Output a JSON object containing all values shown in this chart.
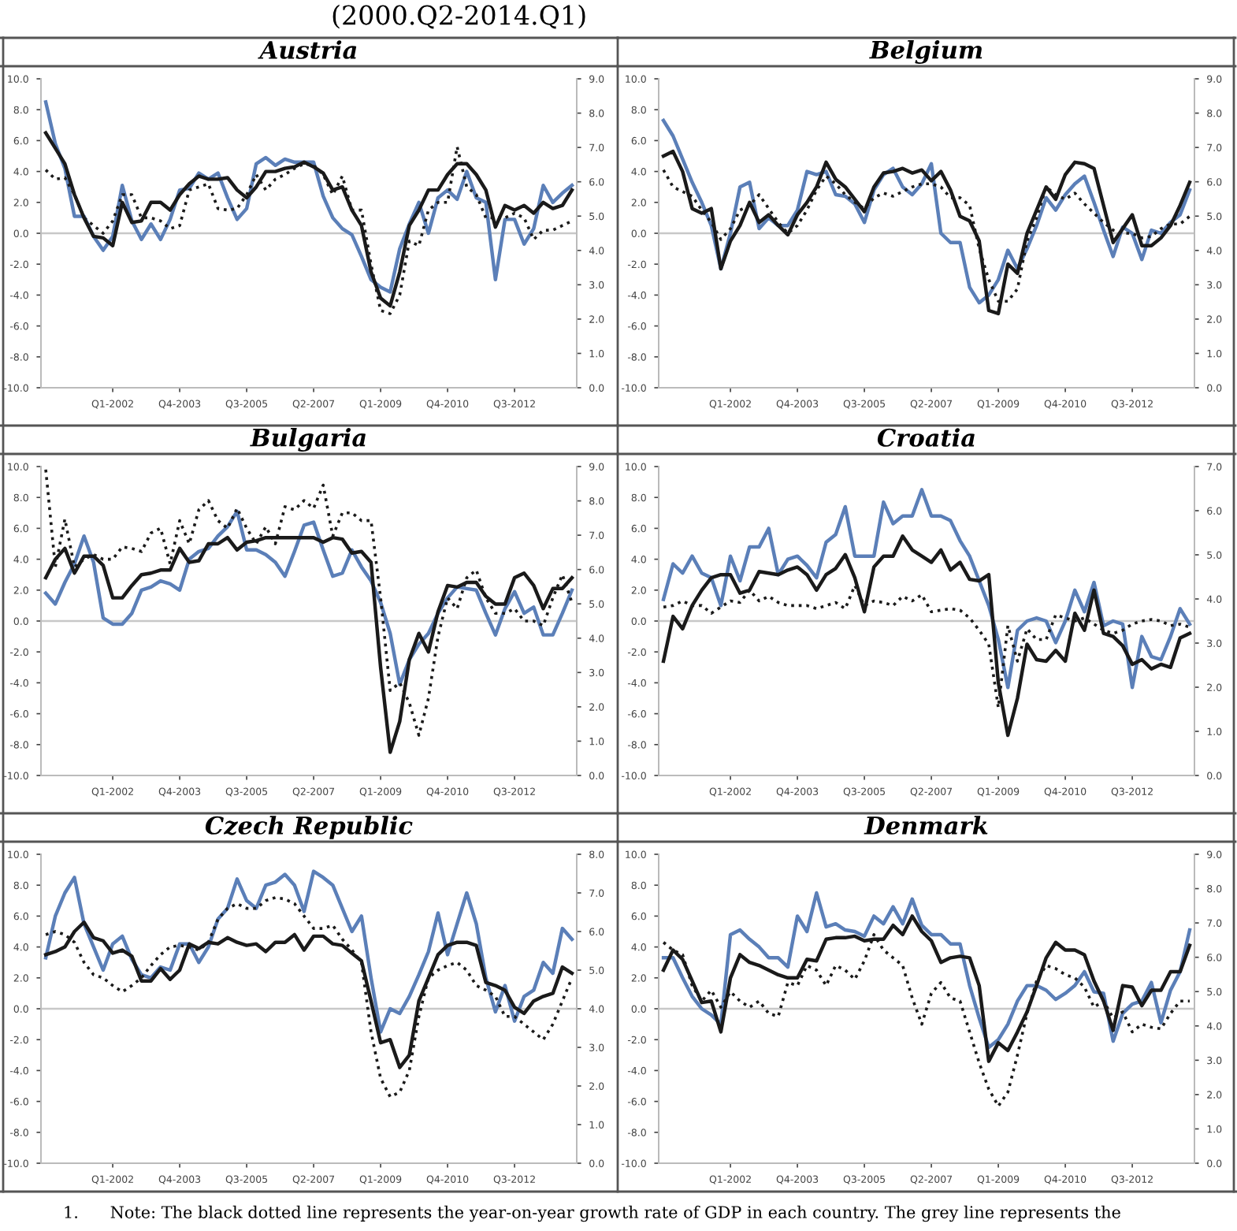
{
  "chart_data": [
    {
      "type": "line",
      "title": "Austria",
      "annotations": [
        "(2000.Q2-2014.Q1)"
      ],
      "categories": [
        null,
        null,
        null,
        null,
        null,
        null,
        null,
        "Q1-2002",
        null,
        null,
        null,
        null,
        null,
        null,
        "Q4-2003",
        null,
        null,
        null,
        null,
        null,
        null,
        "Q3-2005",
        null,
        null,
        null,
        null,
        null,
        null,
        "Q2-2007",
        null,
        null,
        null,
        null,
        null,
        null,
        "Q1-2009",
        null,
        null,
        null,
        null,
        null,
        null,
        "Q4-2010",
        null,
        null,
        null,
        null,
        null,
        null,
        "Q3-2012",
        null,
        null,
        null,
        null,
        null,
        null
      ],
      "series": [
        {
          "color": "#5b7fb8",
          "line_style": "solid",
          "values": [
            8.5,
            5.8,
            4.2,
            1.1,
            1.1,
            -0.2,
            -1.1,
            -0.2,
            3.1,
            0.8,
            -0.4,
            0.6,
            -0.4,
            0.9,
            2.8,
            2.9,
            3.9,
            3.5,
            3.9,
            2.3,
            0.9,
            1.6,
            4.5,
            4.9,
            4.4,
            4.8,
            4.6,
            4.6,
            4.6,
            2.4,
            1.0,
            0.3,
            -0.1,
            -1.5,
            -3.0,
            -3.5,
            -3.8,
            -1.0,
            0.6,
            2.0,
            0.0,
            2.3,
            2.8,
            2.2,
            4.0,
            2.3,
            2.0,
            -3.0,
            0.9,
            0.9,
            -0.7,
            0.3,
            3.1,
            2.0,
            2.6,
            3.1
          ]
        },
        {
          "color": "#1a1a1a",
          "line_style": "solid",
          "values": [
            6.5,
            5.5,
            4.5,
            2.5,
            1.0,
            -0.2,
            -0.3,
            -0.8,
            2.0,
            0.7,
            0.8,
            2.0,
            2.0,
            1.5,
            2.5,
            3.2,
            3.7,
            3.5,
            3.5,
            3.6,
            2.8,
            2.3,
            3.0,
            4.0,
            4.0,
            4.2,
            4.3,
            4.6,
            4.3,
            3.9,
            2.8,
            3.0,
            1.5,
            0.5,
            -2.5,
            -4.2,
            -4.7,
            -2.5,
            0.5,
            1.5,
            2.8,
            2.8,
            3.8,
            4.5,
            4.5,
            3.8,
            2.8,
            0.4,
            1.8,
            1.5,
            1.8,
            1.3,
            2.0,
            1.6,
            1.8,
            2.8
          ]
        },
        {
          "color": "#1a1a1a",
          "line_style": "dotted",
          "values": [
            4.1,
            3.5,
            3.6,
            2.5,
            1.0,
            0.5,
            0.0,
            0.8,
            2.5,
            2.5,
            1.0,
            1.0,
            0.8,
            0.3,
            0.5,
            2.8,
            3.0,
            3.2,
            1.6,
            1.5,
            1.6,
            2.5,
            3.8,
            2.8,
            3.5,
            3.8,
            4.2,
            4.5,
            4.4,
            3.8,
            2.5,
            3.7,
            1.5,
            1.5,
            -2.0,
            -5.0,
            -5.2,
            -4.0,
            -0.5,
            -0.8,
            1.5,
            2.0,
            2.0,
            5.6,
            3.0,
            2.5,
            1.0,
            1.0,
            1.0,
            1.3,
            1.0,
            -0.4,
            0.2,
            0.2,
            0.5,
            0.8
          ]
        }
      ],
      "ylim": [
        -10,
        10
      ],
      "yticks": [
        {
          "value": -10,
          "label": "-10.0"
        },
        {
          "value": -8,
          "label": "-8.0"
        },
        {
          "value": -6,
          "label": "-6.0"
        },
        {
          "value": -4,
          "label": "-4.0"
        },
        {
          "value": -2,
          "label": "-2.0"
        },
        {
          "value": 0,
          "label": "0.0"
        },
        {
          "value": 2,
          "label": "2.0"
        },
        {
          "value": 4,
          "label": "4.0"
        },
        {
          "value": 6,
          "label": "6.0"
        },
        {
          "value": 8,
          "label": "8.0"
        },
        {
          "value": 10,
          "label": "10.0"
        }
      ],
      "y2lim": [
        0,
        9
      ],
      "y2ticks": [
        {
          "value": 0,
          "label": "0.0"
        },
        {
          "value": 1,
          "label": "1.0"
        },
        {
          "value": 2,
          "label": "2.0"
        },
        {
          "value": 3,
          "label": "3.0"
        },
        {
          "value": 4,
          "label": "4.0"
        },
        {
          "value": 5,
          "label": "5.0"
        },
        {
          "value": 6,
          "label": "6.0"
        },
        {
          "value": 7,
          "label": "7.0"
        },
        {
          "value": 8,
          "label": "8.0"
        },
        {
          "value": 9,
          "label": "9.0"
        }
      ],
      "ref_lines": [
        {
          "axis": "y",
          "value": 0,
          "color": "#c8c8c8"
        }
      ]
    },
    {
      "type": "line",
      "title": "Belgium",
      "categories": [
        null,
        null,
        null,
        null,
        null,
        null,
        null,
        "Q1-2002",
        null,
        null,
        null,
        null,
        null,
        null,
        "Q4-2003",
        null,
        null,
        null,
        null,
        null,
        null,
        "Q3-2005",
        null,
        null,
        null,
        null,
        null,
        null,
        "Q2-2007",
        null,
        null,
        null,
        null,
        null,
        null,
        "Q1-2009",
        null,
        null,
        null,
        null,
        null,
        null,
        "Q4-2010",
        null,
        null,
        null,
        null,
        null,
        null,
        "Q3-2012",
        null,
        null,
        null,
        null,
        null,
        null
      ],
      "series": [
        {
          "color": "#5b7fb8",
          "line_style": "solid",
          "values": [
            7.3,
            6.3,
            4.8,
            3.3,
            2.0,
            0.5,
            -2.3,
            0.0,
            3.0,
            3.3,
            0.3,
            1.0,
            0.5,
            0.5,
            1.5,
            4.0,
            3.8,
            4.0,
            2.5,
            2.4,
            1.9,
            0.7,
            2.8,
            3.8,
            4.2,
            3.0,
            2.5,
            3.2,
            4.5,
            0.0,
            -0.6,
            -0.6,
            -3.5,
            -4.5,
            -4.0,
            -3.0,
            -1.1,
            -2.3,
            -1.0,
            0.5,
            2.3,
            1.5,
            2.5,
            3.2,
            3.7,
            2.0,
            0.2,
            -1.5,
            0.4,
            0.0,
            -1.7,
            0.2,
            0.0,
            0.7,
            1.2,
            2.8
          ]
        },
        {
          "color": "#1a1a1a",
          "line_style": "solid",
          "values": [
            5.0,
            5.3,
            4.0,
            1.6,
            1.3,
            1.6,
            -2.3,
            -0.5,
            0.5,
            2.0,
            0.7,
            1.2,
            0.5,
            -0.1,
            1.2,
            2.0,
            3.0,
            4.6,
            3.5,
            3.0,
            2.2,
            1.4,
            3.0,
            3.9,
            4.0,
            4.2,
            3.9,
            4.1,
            3.4,
            4.0,
            2.8,
            1.1,
            0.8,
            -0.5,
            -5.0,
            -5.2,
            -2.0,
            -2.6,
            0.0,
            1.5,
            3.0,
            2.2,
            3.8,
            4.6,
            4.5,
            4.2,
            1.8,
            -0.6,
            0.3,
            1.2,
            -0.8,
            -0.8,
            -0.3,
            0.5,
            1.8,
            3.3
          ]
        },
        {
          "color": "#1a1a1a",
          "line_style": "dotted",
          "values": [
            4.1,
            3.0,
            2.7,
            2.4,
            1.5,
            0.7,
            -0.4,
            0.3,
            1.5,
            1.8,
            2.5,
            1.6,
            0.7,
            0.0,
            0.5,
            1.5,
            2.8,
            3.7,
            3.2,
            2.5,
            2.0,
            1.6,
            2.3,
            2.6,
            2.4,
            2.7,
            3.0,
            3.2,
            3.2,
            3.0,
            2.3,
            2.3,
            1.8,
            -1.0,
            -3.0,
            -4.4,
            -4.4,
            -3.6,
            -0.5,
            1.0,
            3.0,
            2.5,
            2.2,
            2.6,
            1.9,
            1.3,
            0.7,
            0.2,
            0.0,
            0.0,
            -0.3,
            -0.2,
            0.3,
            0.6,
            0.6,
            1.1
          ]
        }
      ],
      "ylim": [
        -10,
        10
      ],
      "yticks": [
        {
          "value": -10,
          "label": "-10.0"
        },
        {
          "value": -8,
          "label": "-8.0"
        },
        {
          "value": -6,
          "label": "-6.0"
        },
        {
          "value": -4,
          "label": "-4.0"
        },
        {
          "value": -2,
          "label": "-2.0"
        },
        {
          "value": 0,
          "label": "0.0"
        },
        {
          "value": 2,
          "label": "2.0"
        },
        {
          "value": 4,
          "label": "4.0"
        },
        {
          "value": 6,
          "label": "6.0"
        },
        {
          "value": 8,
          "label": "8.0"
        },
        {
          "value": 10,
          "label": "10.0"
        }
      ],
      "y2lim": [
        0,
        9
      ],
      "y2ticks": [
        {
          "value": 0,
          "label": "0.0"
        },
        {
          "value": 1,
          "label": "1.0"
        },
        {
          "value": 2,
          "label": "2.0"
        },
        {
          "value": 3,
          "label": "3.0"
        },
        {
          "value": 4,
          "label": "4.0"
        },
        {
          "value": 5,
          "label": "5.0"
        },
        {
          "value": 6,
          "label": "6.0"
        },
        {
          "value": 7,
          "label": "7.0"
        },
        {
          "value": 8,
          "label": "8.0"
        },
        {
          "value": 9,
          "label": "9.0"
        }
      ],
      "ref_lines": [
        {
          "axis": "y",
          "value": 0,
          "color": "#c8c8c8"
        }
      ]
    },
    {
      "type": "line",
      "title": "Bulgaria",
      "categories": [
        null,
        null,
        null,
        null,
        null,
        null,
        null,
        "Q1-2002",
        null,
        null,
        null,
        null,
        null,
        null,
        "Q4-2003",
        null,
        null,
        null,
        null,
        null,
        null,
        "Q3-2005",
        null,
        null,
        null,
        null,
        null,
        null,
        "Q2-2007",
        null,
        null,
        null,
        null,
        null,
        null,
        "Q1-2009",
        null,
        null,
        null,
        null,
        null,
        null,
        "Q4-2010",
        null,
        null,
        null,
        null,
        null,
        null,
        "Q3-2012",
        null,
        null,
        null,
        null,
        null,
        null
      ],
      "series": [
        {
          "color": "#5b7fb8",
          "line_style": "solid",
          "values": [
            1.8,
            1.1,
            2.5,
            3.7,
            5.5,
            3.8,
            0.2,
            -0.2,
            -0.2,
            0.5,
            2.0,
            2.2,
            2.6,
            2.4,
            2.0,
            4.0,
            4.5,
            4.7,
            5.5,
            6.1,
            7.1,
            4.6,
            4.6,
            4.3,
            3.8,
            2.9,
            4.5,
            6.2,
            6.4,
            4.6,
            2.9,
            3.1,
            4.6,
            3.5,
            2.6,
            1.2,
            -0.8,
            -4.1,
            -2.5,
            -1.5,
            -0.8,
            0.5,
            1.5,
            2.2,
            2.1,
            2.0,
            0.5,
            -0.9,
            0.8,
            1.9,
            0.5,
            0.9,
            -0.9,
            -0.9,
            0.5,
            2.0
          ]
        },
        {
          "color": "#1a1a1a",
          "line_style": "solid",
          "values": [
            2.8,
            4.0,
            4.7,
            3.1,
            4.2,
            4.2,
            3.6,
            1.5,
            1.5,
            2.3,
            3.0,
            3.1,
            3.3,
            3.3,
            4.7,
            3.8,
            3.9,
            5.0,
            5.0,
            5.4,
            4.6,
            5.1,
            5.2,
            5.4,
            5.4,
            5.4,
            5.4,
            5.4,
            5.4,
            5.1,
            5.4,
            5.3,
            4.4,
            4.5,
            3.8,
            -3.0,
            -8.5,
            -6.5,
            -2.5,
            -0.8,
            -2.0,
            0.6,
            2.3,
            2.2,
            2.5,
            2.5,
            1.6,
            1.1,
            1.1,
            2.8,
            3.1,
            2.3,
            0.8,
            2.1,
            2.1,
            2.8
          ]
        },
        {
          "color": "#1a1a1a",
          "line_style": "dotted",
          "values": [
            9.8,
            3.5,
            6.6,
            3.5,
            4.0,
            4.3,
            4.0,
            4.0,
            4.8,
            4.7,
            4.5,
            5.7,
            6.0,
            3.7,
            6.5,
            5.0,
            7.2,
            7.8,
            6.5,
            6.0,
            7.3,
            6.0,
            5.0,
            6.1,
            5.0,
            7.4,
            7.2,
            7.8,
            7.3,
            8.8,
            5.5,
            7.0,
            7.0,
            6.5,
            6.5,
            1.5,
            -4.5,
            -4.0,
            -5.3,
            -7.4,
            -5.0,
            -1.0,
            1.5,
            0.8,
            2.8,
            3.3,
            1.5,
            0.5,
            0.5,
            0.8,
            0.0,
            0.0,
            -0.3,
            1.5,
            3.0,
            1.2
          ]
        }
      ],
      "ylim": [
        -10,
        10
      ],
      "yticks": [
        {
          "value": -10,
          "label": "-10.0"
        },
        {
          "value": -8,
          "label": "-8.0"
        },
        {
          "value": -6,
          "label": "-6.0"
        },
        {
          "value": -4,
          "label": "-4.0"
        },
        {
          "value": -2,
          "label": "-2.0"
        },
        {
          "value": 0,
          "label": "0.0"
        },
        {
          "value": 2,
          "label": "2.0"
        },
        {
          "value": 4,
          "label": "4.0"
        },
        {
          "value": 6,
          "label": "6.0"
        },
        {
          "value": 8,
          "label": "8.0"
        },
        {
          "value": 10,
          "label": "10.0"
        }
      ],
      "y2lim": [
        0,
        9
      ],
      "y2ticks": [
        {
          "value": 0,
          "label": "0.0"
        },
        {
          "value": 1,
          "label": "1.0"
        },
        {
          "value": 2,
          "label": "2.0"
        },
        {
          "value": 3,
          "label": "3.0"
        },
        {
          "value": 4,
          "label": "4.0"
        },
        {
          "value": 5,
          "label": "5.0"
        },
        {
          "value": 6,
          "label": "6.0"
        },
        {
          "value": 7,
          "label": "7.0"
        },
        {
          "value": 8,
          "label": "8.0"
        },
        {
          "value": 9,
          "label": "9.0"
        }
      ],
      "ref_lines": [
        {
          "axis": "y",
          "value": 0,
          "color": "#c8c8c8"
        }
      ]
    },
    {
      "type": "line",
      "title": "Croatia",
      "categories": [
        null,
        null,
        null,
        null,
        null,
        null,
        null,
        "Q1-2002",
        null,
        null,
        null,
        null,
        null,
        null,
        "Q4-2003",
        null,
        null,
        null,
        null,
        null,
        null,
        "Q3-2005",
        null,
        null,
        null,
        null,
        null,
        null,
        "Q2-2007",
        null,
        null,
        null,
        null,
        null,
        null,
        "Q1-2009",
        null,
        null,
        null,
        null,
        null,
        null,
        "Q4-2010",
        null,
        null,
        null,
        null,
        null,
        null,
        "Q3-2012",
        null,
        null,
        null,
        null,
        null,
        null
      ],
      "series": [
        {
          "color": "#5b7fb8",
          "line_style": "solid",
          "values": [
            1.4,
            3.7,
            3.1,
            4.2,
            3.1,
            2.8,
            1.0,
            4.2,
            2.6,
            4.8,
            4.8,
            6.0,
            3.0,
            4.0,
            4.2,
            3.6,
            2.8,
            5.1,
            5.6,
            7.4,
            4.2,
            4.2,
            4.2,
            7.7,
            6.3,
            6.8,
            6.8,
            8.5,
            6.8,
            6.8,
            6.5,
            5.2,
            4.2,
            2.6,
            1.0,
            -1.2,
            -4.3,
            -0.6,
            0.0,
            0.2,
            0.0,
            -1.4,
            0.0,
            2.0,
            0.6,
            2.5,
            -0.3,
            0.0,
            -0.2,
            -4.3,
            -1.0,
            -2.3,
            -2.5,
            -1.0,
            0.8,
            -0.2
          ]
        },
        {
          "color": "#1a1a1a",
          "line_style": "solid",
          "values": [
            -2.6,
            0.3,
            -0.5,
            1.0,
            2.0,
            2.8,
            3.0,
            3.0,
            1.8,
            2.0,
            3.2,
            3.1,
            3.0,
            3.3,
            3.5,
            3.0,
            2.0,
            3.0,
            3.4,
            4.3,
            2.8,
            0.6,
            3.5,
            4.2,
            4.2,
            5.5,
            4.6,
            4.2,
            3.8,
            4.6,
            3.3,
            3.8,
            2.7,
            2.6,
            3.0,
            -4.0,
            -7.4,
            -5.0,
            -1.5,
            -2.5,
            -2.6,
            -1.9,
            -2.6,
            0.5,
            -0.6,
            2.0,
            -0.8,
            -1.0,
            -1.6,
            -2.8,
            -2.5,
            -3.1,
            -2.8,
            -3.0,
            -1.1,
            -0.8
          ]
        },
        {
          "color": "#1a1a1a",
          "line_style": "dotted",
          "values": [
            0.9,
            1.0,
            1.3,
            1.0,
            1.0,
            0.5,
            0.9,
            1.3,
            1.2,
            2.0,
            1.3,
            1.6,
            1.2,
            1.0,
            1.0,
            1.0,
            0.8,
            1.0,
            1.2,
            0.8,
            2.3,
            1.0,
            1.3,
            1.2,
            1.0,
            1.6,
            1.3,
            1.7,
            0.6,
            0.7,
            0.8,
            0.7,
            0.2,
            -0.6,
            -1.5,
            -5.6,
            -0.3,
            -2.6,
            -0.5,
            -1.2,
            -1.2,
            0.4,
            0.2,
            0.0,
            0.2,
            -0.2,
            -0.6,
            -0.8,
            -0.6,
            -0.2,
            0.0,
            0.1,
            0.0,
            -0.3,
            -0.2,
            -0.4
          ]
        }
      ],
      "ylim": [
        -10,
        10
      ],
      "yticks": [
        {
          "value": -10,
          "label": "-10.0"
        },
        {
          "value": -8,
          "label": "-8.0"
        },
        {
          "value": -6,
          "label": "-6.0"
        },
        {
          "value": -4,
          "label": "-4.0"
        },
        {
          "value": -2,
          "label": "-2.0"
        },
        {
          "value": 0,
          "label": "0.0"
        },
        {
          "value": 2,
          "label": "2.0"
        },
        {
          "value": 4,
          "label": "4.0"
        },
        {
          "value": 6,
          "label": "6.0"
        },
        {
          "value": 8,
          "label": "8.0"
        },
        {
          "value": 10,
          "label": "10.0"
        }
      ],
      "y2lim": [
        0,
        7
      ],
      "y2ticks": [
        {
          "value": 0,
          "label": "0.0"
        },
        {
          "value": 1,
          "label": "1.0"
        },
        {
          "value": 2,
          "label": "2.0"
        },
        {
          "value": 3,
          "label": "3.0"
        },
        {
          "value": 4,
          "label": "4.0"
        },
        {
          "value": 5,
          "label": "5.0"
        },
        {
          "value": 6,
          "label": "6.0"
        },
        {
          "value": 7,
          "label": "7.0"
        }
      ],
      "ref_lines": [
        {
          "axis": "y",
          "value": 0,
          "color": "#c8c8c8"
        }
      ]
    },
    {
      "type": "line",
      "title": "Czech Republic",
      "annotations": [
        "1.      Note: The black dotted line represents the year-on-year growth rate of GDP in each country. The grey line represents the"
      ],
      "categories": [
        null,
        null,
        null,
        null,
        null,
        null,
        null,
        "Q1-2002",
        null,
        null,
        null,
        null,
        null,
        null,
        "Q4-2003",
        null,
        null,
        null,
        null,
        null,
        null,
        "Q3-2005",
        null,
        null,
        null,
        null,
        null,
        null,
        "Q2-2007",
        null,
        null,
        null,
        null,
        null,
        null,
        "Q1-2009",
        null,
        null,
        null,
        null,
        null,
        null,
        "Q4-2010",
        null,
        null,
        null,
        null,
        null,
        null,
        "Q3-2012",
        null,
        null,
        null,
        null,
        null,
        null
      ],
      "series": [
        {
          "color": "#5b7fb8",
          "line_style": "solid",
          "values": [
            3.3,
            6.0,
            7.5,
            8.5,
            5.5,
            4.0,
            2.5,
            4.2,
            4.7,
            3.2,
            2.2,
            2.0,
            2.7,
            2.5,
            4.2,
            4.2,
            3.0,
            4.0,
            5.8,
            6.5,
            8.4,
            7.0,
            6.5,
            8.0,
            8.2,
            8.7,
            8.0,
            6.3,
            8.9,
            8.5,
            8.0,
            6.5,
            5.0,
            6.0,
            2.0,
            -1.5,
            0.0,
            -0.3,
            0.8,
            2.2,
            3.7,
            6.2,
            3.5,
            5.5,
            7.5,
            5.5,
            2.0,
            -0.2,
            1.5,
            -0.8,
            0.8,
            1.2,
            3.0,
            2.3,
            5.2,
            4.5
          ]
        },
        {
          "color": "#1a1a1a",
          "line_style": "solid",
          "values": [
            3.5,
            3.7,
            4.0,
            5.0,
            5.6,
            4.6,
            4.4,
            3.6,
            3.8,
            3.4,
            1.8,
            1.8,
            2.6,
            1.9,
            2.5,
            4.2,
            3.9,
            4.3,
            4.2,
            4.6,
            4.3,
            4.1,
            4.2,
            3.7,
            4.3,
            4.3,
            4.8,
            3.8,
            4.7,
            4.7,
            4.2,
            4.1,
            3.6,
            3.1,
            0.5,
            -2.2,
            -2.0,
            -3.8,
            -3.0,
            0.5,
            2.0,
            3.5,
            4.1,
            4.3,
            4.3,
            4.1,
            1.7,
            1.5,
            1.2,
            0.1,
            -0.3,
            0.5,
            0.8,
            1.0,
            2.7,
            2.3
          ]
        },
        {
          "color": "#1a1a1a",
          "line_style": "dotted",
          "values": [
            4.8,
            5.0,
            4.8,
            4.3,
            3.0,
            2.2,
            2.0,
            1.5,
            1.1,
            1.5,
            2.0,
            2.8,
            3.5,
            4.0,
            4.1,
            4.0,
            3.8,
            4.3,
            5.8,
            6.5,
            6.8,
            6.5,
            6.5,
            7.0,
            7.2,
            7.1,
            6.8,
            6.0,
            5.2,
            5.2,
            5.4,
            4.5,
            3.8,
            3.0,
            -1.5,
            -4.5,
            -5.7,
            -5.4,
            -4.0,
            -0.5,
            2.0,
            2.5,
            2.8,
            3.0,
            2.5,
            1.5,
            1.2,
            0.8,
            -0.5,
            -0.5,
            -1.0,
            -1.5,
            -2.0,
            -1.0,
            0.5,
            2.0
          ]
        }
      ],
      "ylim": [
        -10,
        10
      ],
      "yticks": [
        {
          "value": -10,
          "label": "-10.0"
        },
        {
          "value": -8,
          "label": "-8.0"
        },
        {
          "value": -6,
          "label": "-6.0"
        },
        {
          "value": -4,
          "label": "-4.0"
        },
        {
          "value": -2,
          "label": "-2.0"
        },
        {
          "value": 0,
          "label": "0.0"
        },
        {
          "value": 2,
          "label": "2.0"
        },
        {
          "value": 4,
          "label": "4.0"
        },
        {
          "value": 6,
          "label": "6.0"
        },
        {
          "value": 8,
          "label": "8.0"
        },
        {
          "value": 10,
          "label": "10.0"
        }
      ],
      "y2lim": [
        0,
        8
      ],
      "y2ticks": [
        {
          "value": 0,
          "label": "0.0"
        },
        {
          "value": 1,
          "label": "1.0"
        },
        {
          "value": 2,
          "label": "2.0"
        },
        {
          "value": 3,
          "label": "3.0"
        },
        {
          "value": 4,
          "label": "4.0"
        },
        {
          "value": 5,
          "label": "5.0"
        },
        {
          "value": 6,
          "label": "6.0"
        },
        {
          "value": 7,
          "label": "7.0"
        },
        {
          "value": 8,
          "label": "8.0"
        }
      ],
      "ref_lines": [
        {
          "axis": "y",
          "value": 0,
          "color": "#c8c8c8"
        }
      ]
    },
    {
      "type": "line",
      "title": "Denmark",
      "categories": [
        null,
        null,
        null,
        null,
        null,
        null,
        null,
        "Q1-2002",
        null,
        null,
        null,
        null,
        null,
        null,
        "Q4-2003",
        null,
        null,
        null,
        null,
        null,
        null,
        "Q3-2005",
        null,
        null,
        null,
        null,
        null,
        null,
        "Q2-2007",
        null,
        null,
        null,
        null,
        null,
        null,
        "Q1-2009",
        null,
        null,
        null,
        null,
        null,
        null,
        "Q4-2010",
        null,
        null,
        null,
        null,
        null,
        null,
        "Q3-2012",
        null,
        null,
        null,
        null,
        null,
        null
      ],
      "series": [
        {
          "color": "#5b7fb8",
          "line_style": "solid",
          "values": [
            3.3,
            3.3,
            2.0,
            0.8,
            0.0,
            -0.4,
            -1.0,
            4.8,
            5.1,
            4.5,
            4.0,
            3.3,
            3.3,
            2.7,
            6.0,
            5.0,
            7.5,
            5.3,
            5.5,
            5.1,
            5.0,
            4.7,
            6.0,
            5.5,
            6.6,
            5.5,
            7.1,
            5.4,
            4.8,
            4.8,
            4.2,
            4.2,
            1.5,
            -0.6,
            -2.5,
            -2.0,
            -1.0,
            0.5,
            1.5,
            1.5,
            1.2,
            0.6,
            1.0,
            1.5,
            2.4,
            1.1,
            1.0,
            -2.1,
            -0.3,
            0.3,
            0.5,
            1.7,
            -0.9,
            1.2,
            2.4,
            5.1
          ]
        },
        {
          "color": "#1a1a1a",
          "line_style": "solid",
          "values": [
            2.5,
            3.8,
            3.2,
            1.8,
            0.4,
            0.5,
            -1.5,
            2.0,
            3.5,
            3.0,
            2.8,
            2.5,
            2.2,
            2.0,
            2.0,
            3.2,
            3.1,
            4.5,
            4.6,
            4.6,
            4.7,
            4.4,
            4.5,
            4.5,
            5.4,
            4.8,
            6.0,
            5.0,
            4.4,
            3.0,
            3.3,
            3.4,
            3.3,
            1.5,
            -3.4,
            -2.2,
            -2.7,
            -1.5,
            -0.2,
            1.5,
            3.3,
            4.3,
            3.8,
            3.8,
            3.5,
            1.8,
            0.5,
            -1.4,
            1.5,
            1.4,
            0.2,
            1.2,
            1.2,
            2.4,
            2.4,
            4.1
          ]
        },
        {
          "color": "#1a1a1a",
          "line_style": "dotted",
          "values": [
            4.3,
            3.8,
            3.5,
            1.5,
            0.5,
            1.2,
            0.1,
            1.1,
            0.5,
            0.1,
            0.5,
            -0.3,
            -0.5,
            1.7,
            1.5,
            2.8,
            2.5,
            1.5,
            2.8,
            2.5,
            1.9,
            3.1,
            4.8,
            3.8,
            3.3,
            2.8,
            0.7,
            -1.0,
            1.0,
            1.7,
            0.7,
            0.5,
            -1.5,
            -3.5,
            -5.2,
            -6.3,
            -5.4,
            -3.0,
            -0.3,
            1.8,
            2.8,
            2.6,
            2.2,
            2.0,
            1.4,
            0.1,
            0.5,
            -0.6,
            -0.2,
            -1.5,
            -1.0,
            -1.2,
            -1.3,
            -0.3,
            0.5,
            0.5
          ]
        }
      ],
      "ylim": [
        -10,
        10
      ],
      "yticks": [
        {
          "value": -10,
          "label": "-10.0"
        },
        {
          "value": -8,
          "label": "-8.0"
        },
        {
          "value": -6,
          "label": "-6.0"
        },
        {
          "value": -4,
          "label": "-4.0"
        },
        {
          "value": -2,
          "label": "-2.0"
        },
        {
          "value": 0,
          "label": "0.0"
        },
        {
          "value": 2,
          "label": "2.0"
        },
        {
          "value": 4,
          "label": "4.0"
        },
        {
          "value": 6,
          "label": "6.0"
        },
        {
          "value": 8,
          "label": "8.0"
        },
        {
          "value": 10,
          "label": "10.0"
        }
      ],
      "y2lim": [
        0,
        9
      ],
      "y2ticks": [
        {
          "value": 0,
          "label": "0.0"
        },
        {
          "value": 1,
          "label": "1.0"
        },
        {
          "value": 2,
          "label": "2.0"
        },
        {
          "value": 3,
          "label": "3.0"
        },
        {
          "value": 4,
          "label": "4.0"
        },
        {
          "value": 5,
          "label": "5.0"
        },
        {
          "value": 6,
          "label": "6.0"
        },
        {
          "value": 7,
          "label": "7.0"
        },
        {
          "value": 8,
          "label": "8.0"
        },
        {
          "value": 9,
          "label": "9.0"
        }
      ],
      "ref_lines": [
        {
          "axis": "y",
          "value": 0,
          "color": "#c8c8c8"
        }
      ]
    }
  ]
}
